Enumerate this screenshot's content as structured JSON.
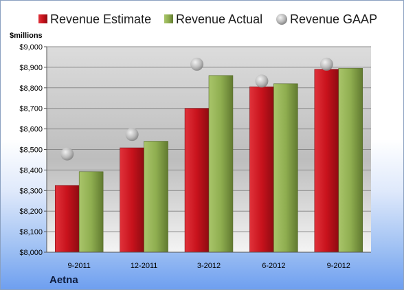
{
  "colors": {
    "estimate": "#c8121c",
    "actual": "#8fae50",
    "gaap": "#b8b8b8"
  },
  "legend": {
    "estimate": "Revenue Estimate",
    "actual": "Revenue Actual",
    "gaap": "Revenue GAAP"
  },
  "unit_label": "$millions",
  "company": "Aetna",
  "chart_data": {
    "type": "bar",
    "categories": [
      "9-2011",
      "12-2011",
      "3-2012",
      "6-2012",
      "9-2012"
    ],
    "series": [
      {
        "name": "Revenue Estimate",
        "values": [
          8325,
          8508,
          8700,
          8805,
          8890
        ]
      },
      {
        "name": "Revenue Actual",
        "values": [
          8392,
          8540,
          8860,
          8820,
          8895
        ]
      },
      {
        "name": "Revenue GAAP",
        "values": [
          8478,
          8573,
          8915,
          8833,
          8915
        ]
      }
    ],
    "ylim": [
      8000,
      9000
    ],
    "yticks": [
      "$8,000",
      "$8,100",
      "$8,200",
      "$8,300",
      "$8,400",
      "$8,500",
      "$8,600",
      "$8,700",
      "$8,800",
      "$8,900",
      "$9,000"
    ],
    "ylabel": "$millions",
    "grid": true,
    "legend_position": "top"
  }
}
